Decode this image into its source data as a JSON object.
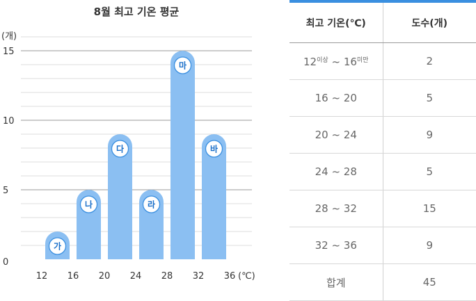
{
  "chart_data": {
    "type": "bar",
    "title": "8월 최고 기온 평균",
    "ylabel": "(개)",
    "x_unit": "(℃)",
    "x_ticks": [
      12,
      16,
      20,
      24,
      28,
      32,
      36
    ],
    "y_ticks": [
      0,
      5,
      10,
      15
    ],
    "ylim": [
      0,
      16
    ],
    "xlim": [
      12,
      36
    ],
    "bins": [
      {
        "from": 12,
        "to": 16,
        "value": 2,
        "label": "가"
      },
      {
        "from": 16,
        "to": 20,
        "value": 5,
        "label": "나"
      },
      {
        "from": 20,
        "to": 24,
        "value": 9,
        "label": "다"
      },
      {
        "from": 24,
        "to": 28,
        "value": 5,
        "label": "라"
      },
      {
        "from": 28,
        "to": 32,
        "value": 15,
        "label": "마"
      },
      {
        "from": 32,
        "to": 36,
        "value": 9,
        "label": "바"
      }
    ],
    "grid": true,
    "colors": {
      "bar": "#8bbff2",
      "label_circle_border": "#3a8fe0",
      "label_text": "#1a6fc9",
      "grid_major": "#9a9a9a",
      "grid_minor": "#dedede"
    }
  },
  "table": {
    "headers": [
      "최고 기온(℃)",
      "도수(개)"
    ],
    "first_row": {
      "low": "12",
      "low_note": "이상",
      "sep": "~",
      "high": "16",
      "high_note": "미만",
      "count": "2"
    },
    "rows": [
      {
        "range": "16 ~ 20",
        "count": "5"
      },
      {
        "range": "20 ~ 24",
        "count": "9"
      },
      {
        "range": "24 ~ 28",
        "count": "5"
      },
      {
        "range": "28 ~ 32",
        "count": "15"
      },
      {
        "range": "32 ~ 36",
        "count": "9"
      }
    ],
    "total": {
      "label": "합계",
      "count": "45"
    }
  }
}
